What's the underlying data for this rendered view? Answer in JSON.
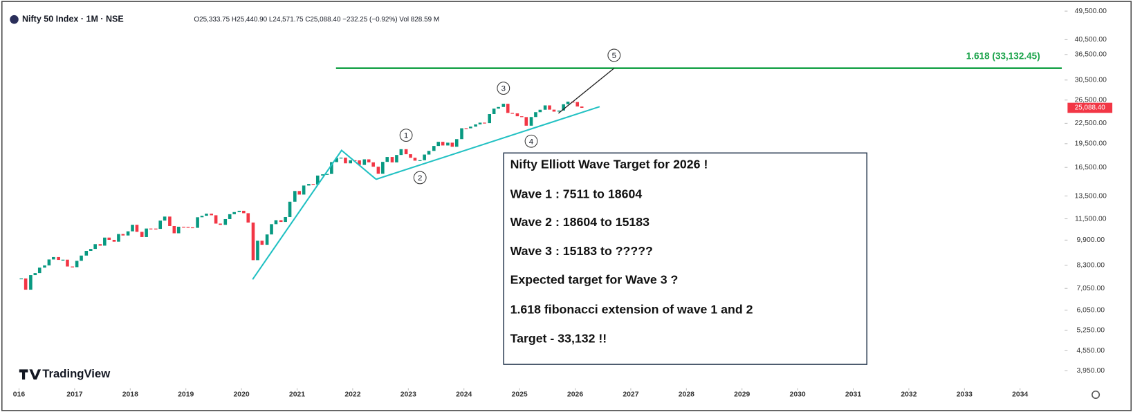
{
  "chart_data": {
    "type": "candlestick",
    "symbol": "Nifty 50 Index · 1M · NSE",
    "ohlc_text": "O25,333.75 H25,440.90 L24,571.75 C25,088.40 −232.25 (−0.92%) Vol 828.59 M",
    "watermark": "TradingView",
    "up_color": "#089981",
    "down_color": "#f23645",
    "log_scale": true,
    "x": [
      2016.04,
      2016.12,
      2016.21,
      2016.29,
      2016.37,
      2016.46,
      2016.54,
      2016.62,
      2016.71,
      2016.79,
      2016.87,
      2016.96,
      2017.04,
      2017.12,
      2017.21,
      2017.29,
      2017.37,
      2017.46,
      2017.54,
      2017.62,
      2017.71,
      2017.79,
      2017.87,
      2017.96,
      2018.04,
      2018.12,
      2018.21,
      2018.29,
      2018.37,
      2018.46,
      2018.54,
      2018.62,
      2018.71,
      2018.79,
      2018.87,
      2018.96,
      2019.04,
      2019.12,
      2019.21,
      2019.29,
      2019.37,
      2019.46,
      2019.54,
      2019.62,
      2019.71,
      2019.79,
      2019.87,
      2019.96,
      2020.04,
      2020.12,
      2020.21,
      2020.29,
      2020.37,
      2020.46,
      2020.54,
      2020.62,
      2020.71,
      2020.79,
      2020.87,
      2020.96,
      2021.04,
      2021.12,
      2021.21,
      2021.29,
      2021.37,
      2021.46,
      2021.54,
      2021.62,
      2021.71,
      2021.79,
      2021.87,
      2021.96,
      2022.04,
      2022.12,
      2022.21,
      2022.29,
      2022.37,
      2022.46,
      2022.54,
      2022.62,
      2022.71,
      2022.79,
      2022.87,
      2022.96,
      2023.04,
      2023.12,
      2023.21,
      2023.29,
      2023.37,
      2023.46,
      2023.54,
      2023.62,
      2023.71,
      2023.79,
      2023.87,
      2023.96,
      2024.04,
      2024.12,
      2024.21,
      2024.29,
      2024.37,
      2024.46,
      2024.54,
      2024.62,
      2024.71,
      2024.79,
      2024.87,
      2024.96,
      2025.04,
      2025.12,
      2025.21,
      2025.29,
      2025.37,
      2025.46,
      2025.54,
      2025.62,
      2025.71,
      2025.79,
      2025.87,
      2025.96,
      2026.04,
      2026.12
    ],
    "values": [
      7563,
      6987,
      7738,
      7850,
      8160,
      8288,
      8639,
      8786,
      8611,
      8626,
      8224,
      8186,
      8561,
      8880,
      9174,
      9304,
      9621,
      9521,
      10077,
      9918,
      9789,
      10335,
      10227,
      10531,
      11028,
      10493,
      10114,
      10739,
      10736,
      10714,
      11357,
      11681,
      10930,
      10387,
      10877,
      10863,
      10831,
      10793,
      11624,
      11748,
      11923,
      11789,
      11118,
      11023,
      11474,
      11877,
      12056,
      12168,
      11962,
      11202,
      8598,
      9860,
      9580,
      10302,
      11073,
      11388,
      11248,
      11642,
      12969,
      13982,
      13635,
      14529,
      14691,
      14631,
      15583,
      15722,
      15763,
      17132,
      17618,
      17672,
      16983,
      17354,
      17340,
      16794,
      17465,
      17103,
      16585,
      15780,
      17158,
      17759,
      17094,
      18012,
      18758,
      18105,
      17662,
      17304,
      17360,
      18065,
      18534,
      19189,
      19754,
      19254,
      19638,
      19080,
      20133,
      21731,
      21726,
      21983,
      22327,
      22605,
      22531,
      24011,
      24951,
      25236,
      25811,
      24205,
      24131,
      23645,
      23508,
      22125,
      23519,
      24334,
      24751,
      25517,
      24768,
      24427,
      24611,
      25722,
      26203,
      26130,
      25320,
      25088.4
    ],
    "last_price": {
      "value": 25088.4,
      "label": "25,088.40"
    },
    "xlim": [
      2015.9,
      2034.75
    ],
    "xticks": [
      {
        "value": 2016,
        "label": "016"
      },
      2017,
      2018,
      2019,
      2020,
      2021,
      2022,
      2023,
      2024,
      2025,
      2026,
      2027,
      2028,
      2029,
      2030,
      2031,
      2032,
      2033,
      2034
    ],
    "ylim": [
      3550,
      51400
    ],
    "yticks": [
      {
        "value": 49500,
        "label": "49,500.00"
      },
      {
        "value": 40500,
        "label": "40,500.00"
      },
      {
        "value": 36500,
        "label": "36,500.00"
      },
      {
        "value": 30500,
        "label": "30,500.00"
      },
      {
        "value": 26500,
        "label": "26,500.00"
      },
      {
        "value": 22500,
        "label": "22,500.00"
      },
      {
        "value": 19500,
        "label": "19,500.00"
      },
      {
        "value": 16500,
        "label": "16,500.00"
      },
      {
        "value": 13500,
        "label": "13,500.00"
      },
      {
        "value": 11500,
        "label": "11,500.00"
      },
      {
        "value": 9900,
        "label": "9,900.00"
      },
      {
        "value": 8300,
        "label": "8,300.00"
      },
      {
        "value": 7050,
        "label": "7,050.00"
      },
      {
        "value": 6050,
        "label": "6,050.00"
      },
      {
        "value": 5250,
        "label": "5,250.00"
      },
      {
        "value": 4550,
        "label": "4,550.00"
      },
      {
        "value": 3950,
        "label": "3,950.00"
      }
    ],
    "fib_level": {
      "value": 33132.45,
      "label": "1.618 (33,132.45)",
      "from_x": 2021.7,
      "color": "#1aa34a"
    },
    "trend_lines": [
      {
        "color": "#22c1c3",
        "x": [
          2020.2,
          2021.8,
          2022.42
        ],
        "y": [
          7511,
          18604,
          15183
        ]
      },
      {
        "color": "#22c1c3",
        "x": [
          2022.42,
          2026.44
        ],
        "y": [
          15183,
          25290
        ]
      },
      {
        "color": "#222222",
        "x": [
          2025.7,
          2026.7
        ],
        "y": [
          24140,
          33132.45
        ]
      }
    ],
    "waves": [
      {
        "label": "1",
        "x": 2022.96,
        "price": 18887,
        "side": "above"
      },
      {
        "label": "2",
        "x": 2023.21,
        "price": 16828,
        "side": "below"
      },
      {
        "label": "3",
        "x": 2024.71,
        "price": 26277,
        "side": "above"
      },
      {
        "label": "4",
        "x": 2025.21,
        "price": 21743,
        "side": "below"
      },
      {
        "label": "5",
        "x": 2026.7,
        "price": 33132.45,
        "side": "above"
      }
    ],
    "note": [
      "Nifty Elliott Wave Target for 2026 !",
      "Wave 1 : 7511 to 18604",
      "Wave 2 : 18604 to 15183",
      "Wave 3 : 15183 to ?????",
      "Expected target for Wave 3 ?",
      "1.618 fibonacci extension of wave 1 and 2",
      "Target - 33,132 !!"
    ]
  }
}
